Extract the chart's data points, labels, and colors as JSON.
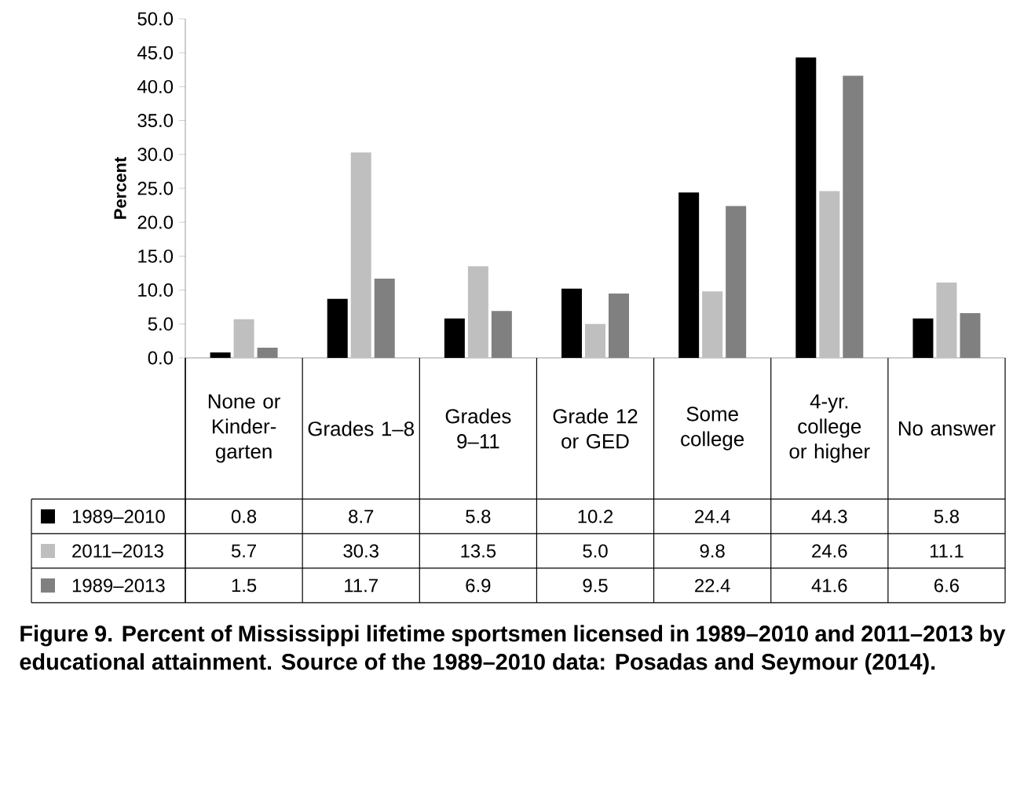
{
  "chart_data": {
    "type": "bar",
    "ylabel": "Percent",
    "categories": [
      "None or Kinder-garten",
      "Grades 1–8",
      "Grades 9–11",
      "Grade 12 or GED",
      "Some college",
      "4-yr. college or higher",
      "No answer"
    ],
    "series": [
      {
        "name": "1989–2010",
        "color": "#000000",
        "values": [
          0.8,
          8.7,
          5.8,
          10.2,
          24.4,
          44.3,
          5.8
        ],
        "value_labels": [
          "0.8",
          "8.7",
          "5.8",
          "10.2",
          "24.4",
          "44.3",
          "5.8"
        ]
      },
      {
        "name": "2011–2013",
        "color": "#bfbfbf",
        "values": [
          5.7,
          30.3,
          13.5,
          5.0,
          9.8,
          24.6,
          11.1
        ],
        "value_labels": [
          "5.7",
          "30.3",
          "13.5",
          "5.0",
          "9.8",
          "24.6",
          "11.1"
        ]
      },
      {
        "name": "1989–2013",
        "color": "#808080",
        "values": [
          1.5,
          11.7,
          6.9,
          9.5,
          22.4,
          41.6,
          6.6
        ],
        "value_labels": [
          "1.5",
          "11.7",
          "6.9",
          "9.5",
          "22.4",
          "41.6",
          "6.6"
        ]
      }
    ],
    "ylim": [
      0,
      50
    ],
    "yticks": [
      {
        "value": 0,
        "label": "0.0"
      },
      {
        "value": 5,
        "label": "5.0"
      },
      {
        "value": 10,
        "label": "10.0"
      },
      {
        "value": 15,
        "label": "15.0"
      },
      {
        "value": 20,
        "label": "20.0"
      },
      {
        "value": 25,
        "label": "25.0"
      },
      {
        "value": 30,
        "label": "30.0"
      },
      {
        "value": 35,
        "label": "35.0"
      },
      {
        "value": 40,
        "label": "40.0"
      },
      {
        "value": 45,
        "label": "45.0"
      },
      {
        "value": 50,
        "label": "50.0"
      }
    ],
    "grid": false,
    "legend": "bottom",
    "annotations": [
      "Figure 9. Percent of Mississippi lifetime sportsmen licensed in 1989–2010 and 2011–2013 by educational attainment. Source of the 1989–2010 data: Posadas and Seymour (2014)."
    ]
  }
}
